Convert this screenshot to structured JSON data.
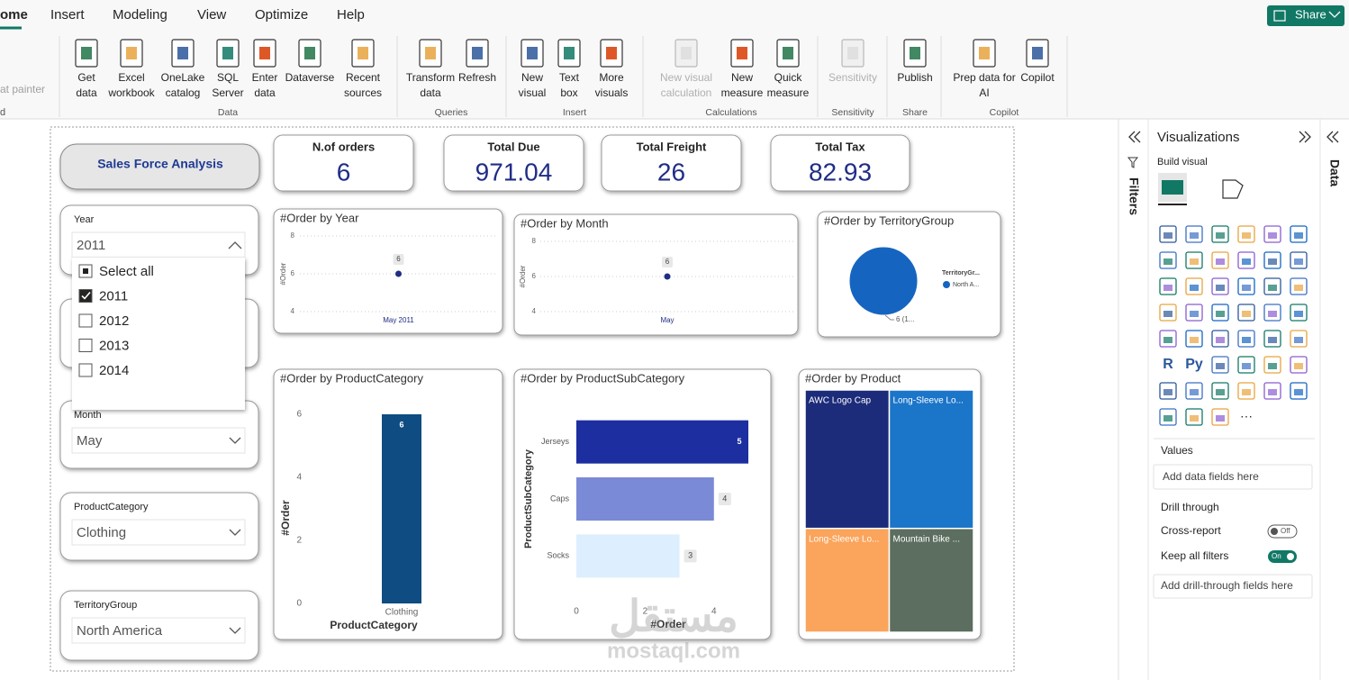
{
  "ribbon": {
    "tabs": [
      "ome",
      "Insert",
      "Modeling",
      "View",
      "Optimize",
      "Help"
    ],
    "share": "Share",
    "cropped": [
      "at painter",
      "d"
    ],
    "groups": [
      {
        "name": "Data",
        "buttons": [
          [
            "Get",
            "data"
          ],
          [
            "Excel",
            "workbook"
          ],
          [
            "OneLake",
            "catalog"
          ],
          [
            "SQL",
            "Server"
          ],
          [
            "Enter",
            "data"
          ],
          [
            "Dataverse"
          ],
          [
            "Recent",
            "sources"
          ]
        ]
      },
      {
        "name": "Queries",
        "buttons": [
          [
            "Transform",
            "data"
          ],
          [
            "Refresh"
          ]
        ]
      },
      {
        "name": "Insert",
        "buttons": [
          [
            "New",
            "visual"
          ],
          [
            "Text",
            "box"
          ],
          [
            "More",
            "visuals"
          ]
        ]
      },
      {
        "name": "Calculations",
        "buttons": [
          [
            "New visual",
            "calculation"
          ],
          [
            "New",
            "measure"
          ],
          [
            "Quick",
            "measure"
          ]
        ]
      },
      {
        "name": "Sensitivity",
        "buttons": [
          [
            "Sensitivity"
          ]
        ]
      },
      {
        "name": "Share",
        "buttons": [
          [
            "Publish"
          ]
        ]
      },
      {
        "name": "Copilot",
        "buttons": [
          [
            "Prep data for",
            "AI"
          ],
          [
            "Copilot"
          ]
        ]
      }
    ]
  },
  "report": {
    "button": "Sales Force Analysis",
    "cards": [
      {
        "title": "N.of orders",
        "value": 6
      },
      {
        "title": "Total Due",
        "value": 971.04
      },
      {
        "title": "Total Freight",
        "value": 26
      },
      {
        "title": "Total Tax",
        "value": 82.93
      }
    ],
    "slicers": [
      {
        "title": "Year",
        "selected": "2011",
        "options": [
          "Select all",
          "2011",
          "2012",
          "2013",
          "2014"
        ],
        "checked_option": 1
      },
      {
        "title": "Month",
        "selected": "May"
      },
      {
        "title": "ProductCategory",
        "selected": "Clothing"
      },
      {
        "title": "TerritoryGroup",
        "selected": "North America"
      }
    ],
    "charts": [
      {
        "type": "line",
        "title": "#Order by Year",
        "y_label": "#Order",
        "categories": [
          "May 2011"
        ],
        "values": [
          6
        ],
        "color": "#1f2d86",
        "ylim": [
          4,
          8
        ],
        "yticks": [
          4,
          6,
          8
        ]
      },
      {
        "type": "line",
        "title": "#Order by Month",
        "y_label": "#Order",
        "categories": [
          "May"
        ],
        "values": [
          6
        ],
        "color": "#1f2d86",
        "ylim": [
          4,
          8
        ],
        "yticks": [
          4,
          6,
          8
        ]
      },
      {
        "type": "pie",
        "title": "#Order by TerritoryGroup",
        "legend_title": "TerritoryGr...",
        "categories": [
          "North A..."
        ],
        "values": [
          6
        ],
        "value_labels": [
          "6 (1..."
        ],
        "colors": [
          "#1565c0"
        ]
      },
      {
        "type": "bar",
        "title": "#Order by ProductCategory",
        "x_label": "ProductCategory",
        "y_label": "#Order",
        "categories": [
          "Clothing"
        ],
        "values": [
          6
        ],
        "color": "#0f4c81",
        "ylim": [
          0,
          6
        ],
        "yticks": [
          0,
          2,
          4,
          6
        ]
      },
      {
        "type": "hbar",
        "title": "#Order by ProductSubCategory",
        "x_label": "#Order",
        "y_label": "ProductSubCategory",
        "categories": [
          "Jerseys",
          "Caps",
          "Socks"
        ],
        "values": [
          5,
          4,
          3
        ],
        "colors": [
          "#1c2ea0",
          "#7b8ad6",
          "#ddeeff"
        ],
        "xlim": [
          0,
          5
        ],
        "xticks": [
          0,
          2,
          4
        ]
      },
      {
        "type": "treemap",
        "title": "#Order by Product",
        "categories": [
          "AWC Logo Cap",
          "Long-Sleeve Lo...",
          "Long-Sleeve Lo...",
          "Mountain Bike ..."
        ],
        "values": [
          4,
          4,
          3,
          3
        ],
        "colors": [
          "#1c2b7a",
          "#1b75c9",
          "#fba45b",
          "#5b6e5f"
        ]
      }
    ]
  },
  "panes": {
    "filters": "Filters",
    "visualizations": "Visualizations",
    "build_visual": "Build visual",
    "icon_texts": [
      "R",
      "Py",
      "···"
    ],
    "values": "Values",
    "add_data": "Add data fields here",
    "drill_through": "Drill through",
    "cross_report": "Cross-report",
    "off": "Off",
    "keep_filters": "Keep all filters",
    "on": "On",
    "add_drill": "Add drill-through fields here",
    "data": "Data"
  },
  "watermark": [
    "مستقل",
    "mostaql.com"
  ]
}
